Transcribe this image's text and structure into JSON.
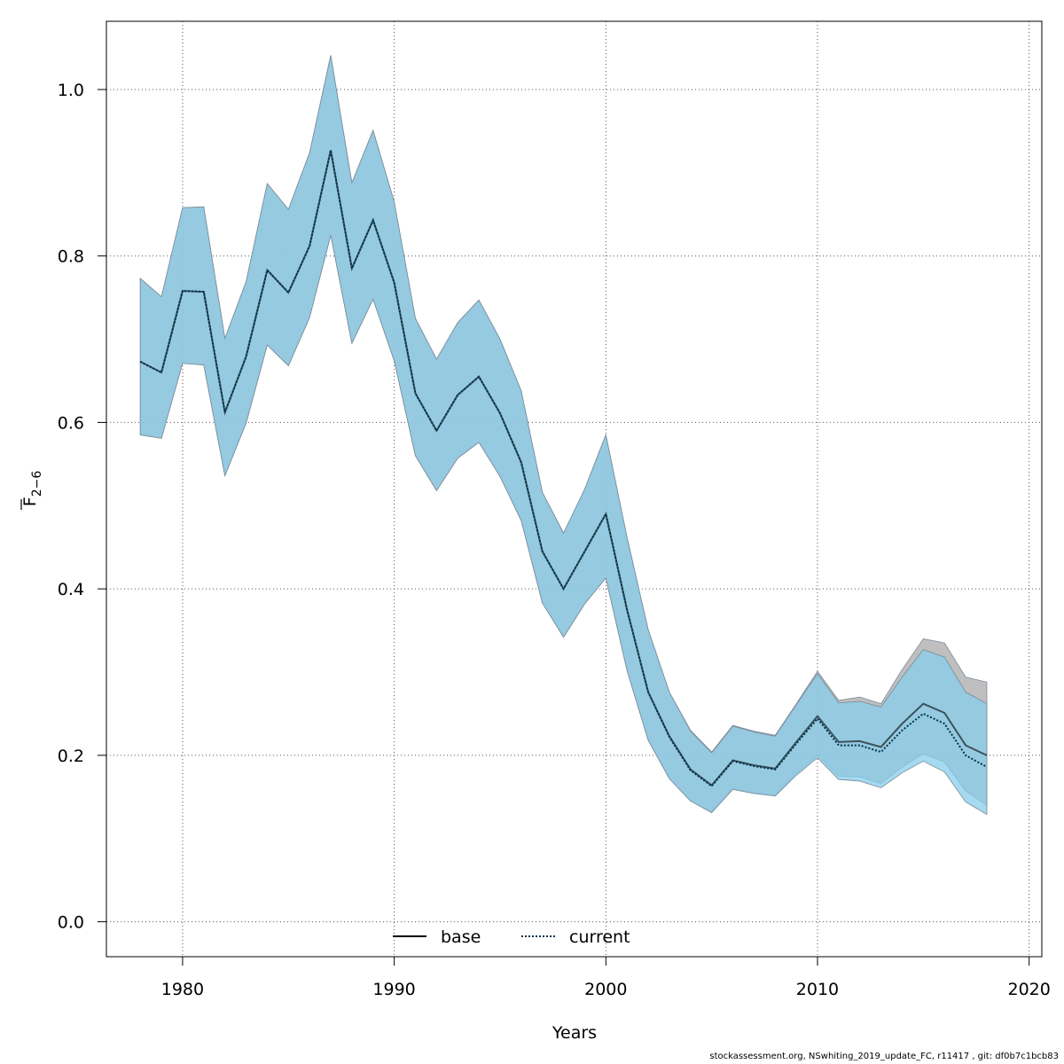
{
  "chart_data": {
    "type": "line",
    "xlabel": "Years",
    "ylabel": "F",
    "ylabel_sub": "2−6",
    "xlim": [
      1976.4,
      2020.6
    ],
    "ylim": [
      -0.042,
      1.082
    ],
    "x_ticks": [
      1980,
      1990,
      2000,
      2010,
      2020
    ],
    "y_ticks": [
      0.0,
      0.2,
      0.4,
      0.6,
      0.8,
      1.0
    ],
    "x_tick_labels": [
      "1980",
      "1990",
      "2000",
      "2010",
      "2020"
    ],
    "y_tick_labels": [
      "0.0",
      "0.2",
      "0.4",
      "0.6",
      "0.8",
      "1.0"
    ],
    "grid": true,
    "legend_position": "bottom-center",
    "years": [
      1978,
      1979,
      1980,
      1981,
      1982,
      1983,
      1984,
      1985,
      1986,
      1987,
      1988,
      1989,
      1990,
      1991,
      1992,
      1993,
      1994,
      1995,
      1996,
      1997,
      1998,
      1999,
      2000,
      2001,
      2002,
      2003,
      2004,
      2005,
      2006,
      2007,
      2008,
      2009,
      2010,
      2011,
      2012,
      2013,
      2014,
      2015,
      2016,
      2017,
      2018
    ],
    "series": [
      {
        "name": "base",
        "line_color": "#000000",
        "line_style": "solid",
        "band_color": "#a9a9a9",
        "values": [
          0.673,
          0.66,
          0.758,
          0.757,
          0.612,
          0.679,
          0.783,
          0.756,
          0.812,
          0.927,
          0.785,
          0.843,
          0.768,
          0.635,
          0.59,
          0.633,
          0.655,
          0.611,
          0.552,
          0.445,
          0.4,
          0.445,
          0.49,
          0.375,
          0.276,
          0.223,
          0.183,
          0.164,
          0.194,
          0.188,
          0.184,
          0.216,
          0.247,
          0.216,
          0.217,
          0.21,
          0.238,
          0.262,
          0.251,
          0.212,
          0.2
        ],
        "lower": [
          0.585,
          0.581,
          0.671,
          0.669,
          0.536,
          0.599,
          0.693,
          0.668,
          0.726,
          0.825,
          0.695,
          0.748,
          0.674,
          0.56,
          0.518,
          0.557,
          0.576,
          0.535,
          0.482,
          0.383,
          0.342,
          0.382,
          0.413,
          0.302,
          0.218,
          0.172,
          0.145,
          0.132,
          0.16,
          0.155,
          0.152,
          0.178,
          0.2,
          0.175,
          0.174,
          0.166,
          0.186,
          0.202,
          0.192,
          0.157,
          0.14
        ],
        "upper": [
          0.773,
          0.751,
          0.858,
          0.859,
          0.701,
          0.769,
          0.887,
          0.856,
          0.924,
          1.041,
          0.888,
          0.951,
          0.865,
          0.725,
          0.676,
          0.72,
          0.747,
          0.7,
          0.638,
          0.516,
          0.467,
          0.52,
          0.585,
          0.462,
          0.351,
          0.276,
          0.23,
          0.204,
          0.236,
          0.229,
          0.224,
          0.262,
          0.301,
          0.266,
          0.27,
          0.262,
          0.303,
          0.34,
          0.335,
          0.294,
          0.288
        ]
      },
      {
        "name": "current",
        "line_color": "#00334d",
        "line_style": "dotted",
        "band_color": "#87ceeb",
        "values": [
          0.673,
          0.66,
          0.758,
          0.757,
          0.612,
          0.679,
          0.783,
          0.756,
          0.812,
          0.927,
          0.785,
          0.843,
          0.768,
          0.635,
          0.59,
          0.633,
          0.655,
          0.611,
          0.552,
          0.445,
          0.4,
          0.445,
          0.49,
          0.375,
          0.276,
          0.222,
          0.182,
          0.163,
          0.193,
          0.187,
          0.183,
          0.214,
          0.244,
          0.212,
          0.212,
          0.204,
          0.23,
          0.25,
          0.238,
          0.2,
          0.186
        ],
        "lower": [
          0.585,
          0.581,
          0.671,
          0.669,
          0.536,
          0.599,
          0.693,
          0.668,
          0.726,
          0.825,
          0.695,
          0.748,
          0.674,
          0.56,
          0.518,
          0.557,
          0.576,
          0.535,
          0.482,
          0.383,
          0.342,
          0.382,
          0.413,
          0.302,
          0.218,
          0.172,
          0.145,
          0.131,
          0.159,
          0.154,
          0.151,
          0.176,
          0.197,
          0.171,
          0.169,
          0.161,
          0.179,
          0.193,
          0.18,
          0.144,
          0.129
        ],
        "upper": [
          0.773,
          0.751,
          0.858,
          0.859,
          0.701,
          0.769,
          0.887,
          0.856,
          0.924,
          1.041,
          0.888,
          0.951,
          0.865,
          0.725,
          0.676,
          0.72,
          0.747,
          0.7,
          0.638,
          0.516,
          0.467,
          0.52,
          0.585,
          0.462,
          0.351,
          0.276,
          0.229,
          0.203,
          0.235,
          0.228,
          0.223,
          0.261,
          0.298,
          0.263,
          0.265,
          0.258,
          0.294,
          0.327,
          0.318,
          0.276,
          0.262
        ]
      }
    ]
  },
  "footer": "stockassessment.org, NSwhiting_2019_update_FC, r11417 , git: df0b7c1bcb83"
}
